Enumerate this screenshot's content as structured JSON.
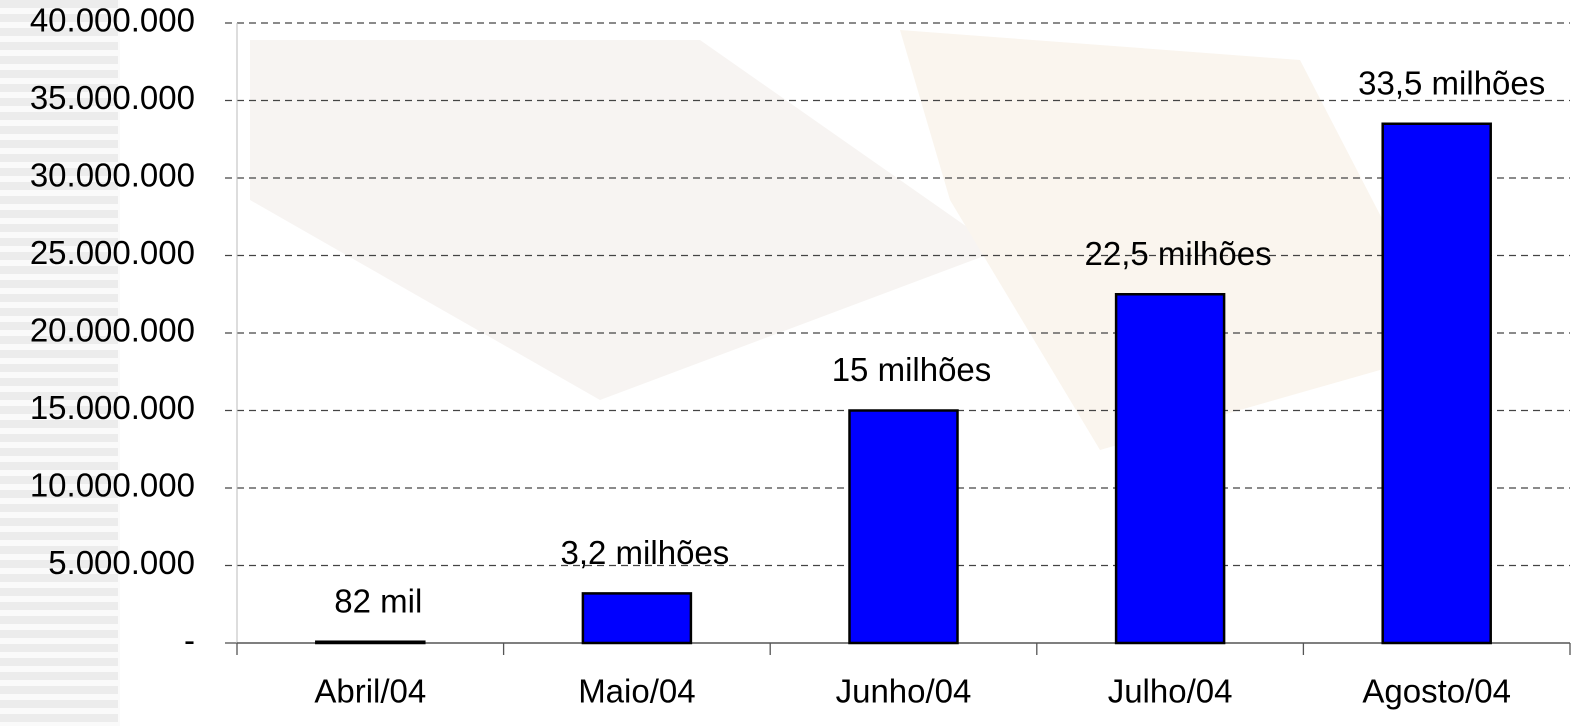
{
  "chart_data": {
    "type": "bar",
    "categories": [
      "Abril/04",
      "Maio/04",
      "Junho/04",
      "Julho/04",
      "Agosto/04"
    ],
    "values": [
      82000,
      3200000,
      15000000,
      22500000,
      33500000
    ],
    "value_labels": [
      "82 mil",
      "3,2 milhões",
      "15 milhões",
      "22,5 milhões",
      "33,5 milhões"
    ],
    "color": "#0000ff",
    "ylim": [
      0,
      40000000
    ],
    "yticks": [
      {
        "value": 0,
        "label": "-"
      },
      {
        "value": 5000000,
        "label": "5.000.000"
      },
      {
        "value": 10000000,
        "label": "10.000.000"
      },
      {
        "value": 15000000,
        "label": "15.000.000"
      },
      {
        "value": 20000000,
        "label": "20.000.000"
      },
      {
        "value": 25000000,
        "label": "25.000.000"
      },
      {
        "value": 30000000,
        "label": "30.000.000"
      },
      {
        "value": 35000000,
        "label": "35.000.000"
      },
      {
        "value": 40000000,
        "label": "40.000.000"
      }
    ],
    "grid": true
  }
}
